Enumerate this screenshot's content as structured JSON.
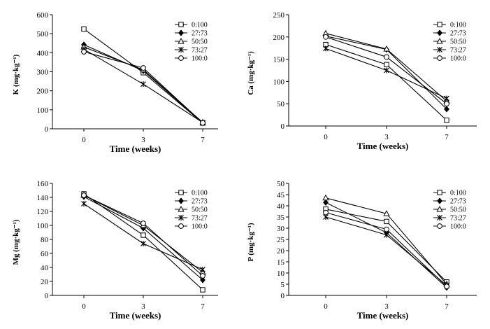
{
  "chart_data": [
    {
      "type": "line",
      "ylabel": "K (mg·kg⁻¹)",
      "xlabel": "Time (weeks)",
      "categories": [
        "0",
        "3",
        "7"
      ],
      "ylim": [
        0,
        600
      ],
      "yticks": [
        0,
        100,
        200,
        300,
        400,
        500,
        600
      ],
      "legend_position": "top-right",
      "series": [
        {
          "name": "0:100",
          "marker": "square",
          "values": [
            525,
            295,
            30
          ]
        },
        {
          "name": "27:73",
          "marker": "diamond",
          "values": [
            442,
            305,
            32
          ]
        },
        {
          "name": "50:50",
          "marker": "triangle",
          "values": [
            430,
            310,
            34
          ]
        },
        {
          "name": "73:27",
          "marker": "star",
          "values": [
            418,
            235,
            33
          ]
        },
        {
          "name": "100:0",
          "marker": "circle",
          "values": [
            405,
            320,
            31
          ]
        }
      ]
    },
    {
      "type": "line",
      "ylabel": "Ca (mg·kg⁻¹)",
      "xlabel": "Time (weeks)",
      "categories": [
        "0",
        "3",
        "7"
      ],
      "ylim": [
        0,
        250
      ],
      "yticks": [
        0,
        50,
        100,
        150,
        200,
        250
      ],
      "legend_position": "top-right",
      "series": [
        {
          "name": "0:100",
          "marker": "square",
          "values": [
            183,
            138,
            13
          ]
        },
        {
          "name": "27:73",
          "marker": "diamond",
          "values": [
            202,
            172,
            38
          ]
        },
        {
          "name": "50:50",
          "marker": "triangle",
          "values": [
            208,
            173,
            56
          ]
        },
        {
          "name": "73:27",
          "marker": "star",
          "values": [
            174,
            125,
            62
          ]
        },
        {
          "name": "100:0",
          "marker": "circle",
          "values": [
            200,
            155,
            50
          ]
        }
      ]
    },
    {
      "type": "line",
      "ylabel": "Mg (mg·kg⁻¹)",
      "xlabel": "Time (weeks)",
      "categories": [
        "0",
        "3",
        "7"
      ],
      "ylim": [
        0,
        160
      ],
      "yticks": [
        0,
        20,
        40,
        60,
        80,
        100,
        120,
        140,
        160
      ],
      "legend_position": "top-right",
      "series": [
        {
          "name": "0:100",
          "marker": "square",
          "values": [
            145,
            86,
            8
          ]
        },
        {
          "name": "27:73",
          "marker": "diamond",
          "values": [
            141,
            96,
            22
          ]
        },
        {
          "name": "50:50",
          "marker": "triangle",
          "values": [
            143,
            100,
            33
          ]
        },
        {
          "name": "73:27",
          "marker": "star",
          "values": [
            131,
            74,
            37
          ]
        },
        {
          "name": "100:0",
          "marker": "circle",
          "values": [
            143,
            103,
            28
          ]
        }
      ]
    },
    {
      "type": "line",
      "ylabel": "P (mg·kg⁻¹)",
      "xlabel": "Time (weeks)",
      "categories": [
        "0",
        "3",
        "7"
      ],
      "ylim": [
        0,
        50
      ],
      "yticks": [
        0,
        5,
        10,
        15,
        20,
        25,
        30,
        35,
        40,
        45,
        50
      ],
      "legend_position": "top-right",
      "series": [
        {
          "name": "0:100",
          "marker": "square",
          "values": [
            38.5,
            33,
            6
          ]
        },
        {
          "name": "27:73",
          "marker": "diamond",
          "values": [
            41.5,
            28,
            3.5
          ]
        },
        {
          "name": "50:50",
          "marker": "triangle",
          "values": [
            43.5,
            36.5,
            5
          ]
        },
        {
          "name": "73:27",
          "marker": "star",
          "values": [
            35,
            27,
            4.5
          ]
        },
        {
          "name": "100:0",
          "marker": "circle",
          "values": [
            37,
            29.5,
            4
          ]
        }
      ]
    }
  ]
}
